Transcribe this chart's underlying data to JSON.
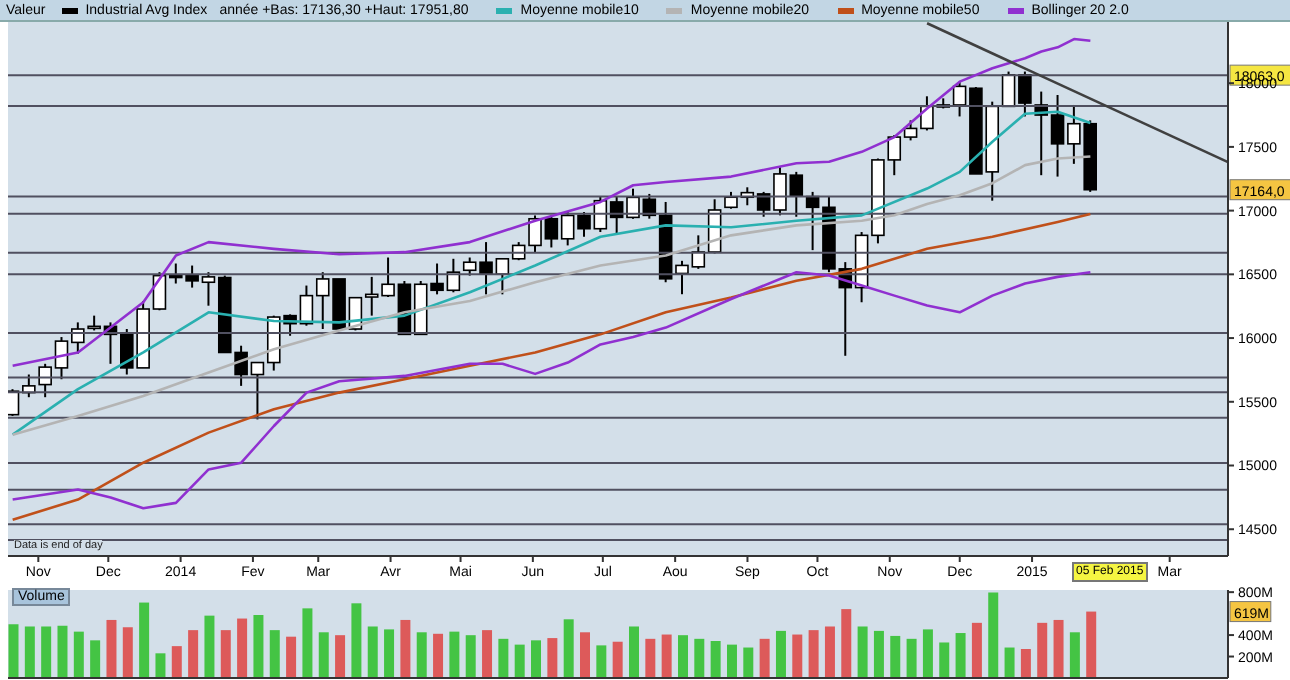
{
  "chart_data": [
    {
      "type": "candlestick",
      "legend_title": "Valeur",
      "legend": "top",
      "marker": "none",
      "x": [
        "2013-10-21",
        "2013-10-28",
        "2013-11-04",
        "2013-11-11",
        "2013-11-18",
        "2013-11-25",
        "2013-12-02",
        "2013-12-09",
        "2013-12-16",
        "2013-12-23",
        "2013-12-30",
        "2014-01-06",
        "2014-01-13",
        "2014-01-20",
        "2014-01-27",
        "2014-02-03",
        "2014-02-10",
        "2014-02-17",
        "2014-02-24",
        "2014-03-03",
        "2014-03-10",
        "2014-03-17",
        "2014-03-24",
        "2014-03-31",
        "2014-04-07",
        "2014-04-14",
        "2014-04-21",
        "2014-04-28",
        "2014-05-05",
        "2014-05-12",
        "2014-05-19",
        "2014-05-26",
        "2014-06-02",
        "2014-06-09",
        "2014-06-16",
        "2014-06-23",
        "2014-06-30",
        "2014-07-07",
        "2014-07-14",
        "2014-07-21",
        "2014-07-28",
        "2014-08-04",
        "2014-08-11",
        "2014-08-18",
        "2014-08-25",
        "2014-09-01",
        "2014-09-08",
        "2014-09-15",
        "2014-09-22",
        "2014-09-29",
        "2014-10-06",
        "2014-10-13",
        "2014-10-20",
        "2014-10-27",
        "2014-11-03",
        "2014-11-10",
        "2014-11-17",
        "2014-11-24",
        "2014-12-01",
        "2014-12-08",
        "2014-12-15",
        "2014-12-22",
        "2014-12-29",
        "2015-01-05",
        "2015-01-12",
        "2015-01-19",
        "2015-01-26"
      ],
      "xlim": [
        "2013-10-19",
        "2015-03-26"
      ],
      "xticks": [
        {
          "value": "2013-11-01",
          "label": "Nov"
        },
        {
          "value": "2013-12-01",
          "label": "Dec"
        },
        {
          "value": "2014-01-01",
          "label": "2014"
        },
        {
          "value": "2014-02-01",
          "label": "Fev"
        },
        {
          "value": "2014-03-01",
          "label": "Mar"
        },
        {
          "value": "2014-04-01",
          "label": "Avr"
        },
        {
          "value": "2014-05-01",
          "label": "Mai"
        },
        {
          "value": "2014-06-01",
          "label": "Jun"
        },
        {
          "value": "2014-07-01",
          "label": "Jul"
        },
        {
          "value": "2014-08-01",
          "label": "Aou"
        },
        {
          "value": "2014-09-01",
          "label": "Sep"
        },
        {
          "value": "2014-10-01",
          "label": "Oct"
        },
        {
          "value": "2014-11-01",
          "label": "Nov"
        },
        {
          "value": "2014-12-01",
          "label": "Dec"
        },
        {
          "value": "2015-01-01",
          "label": "2015"
        },
        {
          "value": "2015-03-01",
          "label": "Mar"
        }
      ],
      "ylim": [
        14290,
        18480
      ],
      "yticks": [
        14500,
        15000,
        15500,
        16000,
        16500,
        17000,
        17500,
        18000
      ],
      "ref_lines": [
        {
          "axis": "y",
          "value": 18063,
          "label": "18063,0",
          "color": "#505060"
        },
        {
          "axis": "y",
          "value": 17820,
          "color": "#505060"
        },
        {
          "axis": "y",
          "value": 17110,
          "color": "#505060"
        },
        {
          "axis": "y",
          "value": 16975,
          "color": "#505060"
        },
        {
          "axis": "y",
          "value": 16670,
          "color": "#505060"
        },
        {
          "axis": "y",
          "value": 16500,
          "color": "#505060"
        },
        {
          "axis": "y",
          "value": 16040,
          "color": "#505060"
        },
        {
          "axis": "y",
          "value": 15690,
          "color": "#505060"
        },
        {
          "axis": "y",
          "value": 15575,
          "color": "#505060"
        },
        {
          "axis": "y",
          "value": 15375,
          "color": "#505060"
        },
        {
          "axis": "y",
          "value": 15020,
          "color": "#505060"
        },
        {
          "axis": "y",
          "value": 14810,
          "color": "#505060"
        },
        {
          "axis": "y",
          "value": 14540,
          "color": "#505060"
        },
        {
          "axis": "y",
          "value": 14415,
          "color": "#505060"
        }
      ],
      "annotations": [
        "année +Bas: 17136,30 +Haut: 17951,80",
        "Data is end of day",
        "05 Feb 2015",
        {
          "text": "17164,0",
          "y": 17164
        }
      ],
      "series": [
        {
          "name": "Industrial Avg Index",
          "type": "candlestick",
          "color": "#000000",
          "ohlc": [
            [
              15399,
              15599,
              15389,
              15583
            ],
            [
              15572,
              15714,
              15536,
              15625
            ],
            [
              15635,
              15798,
              15536,
              15772
            ],
            [
              15766,
              16008,
              15677,
              15976
            ],
            [
              15966,
              16123,
              15877,
              16071
            ],
            [
              16076,
              16176,
              16060,
              16092
            ],
            [
              16092,
              16123,
              15798,
              16029
            ],
            [
              16029,
              16071,
              15714,
              15766
            ],
            [
              15766,
              16291,
              15766,
              16228
            ],
            [
              16228,
              16517,
              16218,
              16490
            ],
            [
              16496,
              16585,
              16428,
              16475
            ],
            [
              16490,
              16569,
              16396,
              16449
            ],
            [
              16438,
              16517,
              16254,
              16480
            ],
            [
              16475,
              16490,
              15887,
              15887
            ],
            [
              15887,
              15940,
              15625,
              15714
            ],
            [
              15714,
              15808,
              15362,
              15808
            ],
            [
              15808,
              16176,
              15745,
              16165
            ],
            [
              16176,
              16186,
              16018,
              16113
            ],
            [
              16113,
              16412,
              16097,
              16333
            ],
            [
              16333,
              16517,
              16071,
              16464
            ],
            [
              16464,
              16464,
              16071,
              16071
            ],
            [
              16071,
              16317,
              16060,
              16317
            ],
            [
              16322,
              16480,
              16176,
              16343
            ],
            [
              16333,
              16632,
              16322,
              16422
            ],
            [
              16422,
              16448,
              16029,
              16029
            ],
            [
              16029,
              16448,
              16029,
              16422
            ],
            [
              16428,
              16585,
              16343,
              16375
            ],
            [
              16375,
              16622,
              16359,
              16517
            ],
            [
              16532,
              16632,
              16490,
              16595
            ],
            [
              16595,
              16753,
              16343,
              16501
            ],
            [
              16501,
              16622,
              16343,
              16622
            ],
            [
              16622,
              16753,
              16611,
              16727
            ],
            [
              16727,
              16962,
              16674,
              16936
            ],
            [
              16936,
              16962,
              16711,
              16779
            ],
            [
              16779,
              16989,
              16727,
              16962
            ],
            [
              16962,
              16989,
              16795,
              16858
            ],
            [
              16858,
              17109,
              16832,
              17078
            ],
            [
              17068,
              17109,
              16816,
              16947
            ],
            [
              16947,
              17172,
              16936,
              17104
            ],
            [
              17089,
              17131,
              16937,
              16963
            ],
            [
              16963,
              17068,
              16438,
              16465
            ],
            [
              16507,
              16606,
              16344,
              16570
            ],
            [
              16559,
              16806,
              16543,
              16675
            ],
            [
              16675,
              17089,
              16664,
              17005
            ],
            [
              17026,
              17147,
              17015,
              17105
            ],
            [
              17105,
              17183,
              17042,
              17141
            ],
            [
              17131,
              17147,
              16952,
              17005
            ],
            [
              17005,
              17341,
              16963,
              17288
            ],
            [
              17278,
              17304,
              16952,
              17120
            ],
            [
              17110,
              17147,
              16690,
              17026
            ],
            [
              17026,
              17110,
              16517,
              16543
            ],
            [
              16543,
              16596,
              15861,
              16396
            ],
            [
              16396,
              16832,
              16281,
              16806
            ],
            [
              16806,
              17409,
              16743,
              17398
            ],
            [
              17398,
              17593,
              17278,
              17577
            ],
            [
              17577,
              17708,
              17551,
              17645
            ],
            [
              17645,
              17897,
              17629,
              17818
            ],
            [
              17818,
              17881,
              17802,
              17829
            ],
            [
              17829,
              18012,
              17739,
              17975
            ],
            [
              17960,
              17970,
              17288,
              17288
            ],
            [
              17304,
              17855,
              17078,
              17818
            ],
            [
              17818,
              18091,
              17818,
              18065
            ],
            [
              18065,
              18091,
              17739,
              17844
            ],
            [
              17829,
              17934,
              17278,
              17750
            ],
            [
              17750,
              17907,
              17267,
              17524
            ],
            [
              17524,
              17829,
              17367,
              17682
            ],
            [
              17682,
              17708,
              17147,
              17164
            ]
          ]
        },
        {
          "name": "Moyenne mobile10",
          "type": "line",
          "color": "#2ab0b0",
          "x": [
            "2013-10-21",
            "2013-11-18",
            "2013-12-16",
            "2014-01-13",
            "2014-02-10",
            "2014-03-10",
            "2014-04-07",
            "2014-05-05",
            "2014-06-02",
            "2014-06-30",
            "2014-07-28",
            "2014-08-25",
            "2014-09-22",
            "2014-10-20",
            "2014-11-17",
            "2014-12-01",
            "2014-12-15",
            "2014-12-29",
            "2015-01-12",
            "2015-01-26"
          ],
          "values": [
            15242,
            15599,
            15887,
            16202,
            16134,
            16123,
            16176,
            16359,
            16569,
            16795,
            16884,
            16869,
            16921,
            16963,
            17173,
            17304,
            17540,
            17760,
            17776,
            17687
          ]
        },
        {
          "name": "Moyenne mobile20",
          "type": "line",
          "color": "#b4b4b4",
          "x": [
            "2013-10-21",
            "2013-11-18",
            "2013-12-16",
            "2014-01-13",
            "2014-02-10",
            "2014-03-10",
            "2014-04-07",
            "2014-05-05",
            "2014-06-02",
            "2014-06-30",
            "2014-07-28",
            "2014-08-25",
            "2014-09-22",
            "2014-10-20",
            "2014-11-03",
            "2014-11-17",
            "2014-12-01",
            "2014-12-15",
            "2014-12-29",
            "2015-01-12",
            "2015-01-26"
          ],
          "values": [
            15242,
            15389,
            15546,
            15730,
            15913,
            16060,
            16202,
            16291,
            16438,
            16569,
            16648,
            16806,
            16884,
            16921,
            16963,
            17052,
            17120,
            17215,
            17357,
            17409,
            17425
          ]
        },
        {
          "name": "Moyenne mobile50",
          "type": "line",
          "color": "#c0501a",
          "x": [
            "2013-10-21",
            "2013-11-18",
            "2013-12-16",
            "2014-01-13",
            "2014-02-10",
            "2014-03-10",
            "2014-04-07",
            "2014-05-05",
            "2014-06-02",
            "2014-06-30",
            "2014-07-28",
            "2014-08-25",
            "2014-09-22",
            "2014-10-20",
            "2014-11-17",
            "2014-12-15",
            "2015-01-12",
            "2015-01-26"
          ],
          "values": [
            14575,
            14733,
            15022,
            15258,
            15441,
            15572,
            15677,
            15782,
            15887,
            16029,
            16202,
            16318,
            16449,
            16543,
            16701,
            16795,
            16911,
            16974
          ]
        },
        {
          "name": "Bollinger 20 2.0",
          "type": "line",
          "color": "#9030d0",
          "x": [
            "2013-10-21",
            "2013-11-18",
            "2013-12-16",
            "2013-12-30",
            "2014-01-13",
            "2014-02-10",
            "2014-03-10",
            "2014-04-07",
            "2014-05-05",
            "2014-06-02",
            "2014-06-30",
            "2014-07-14",
            "2014-07-28",
            "2014-08-25",
            "2014-09-22",
            "2014-10-06",
            "2014-10-20",
            "2014-11-03",
            "2014-11-17",
            "2014-12-01",
            "2014-12-15",
            "2014-12-29",
            "2015-01-05",
            "2015-01-12",
            "2015-01-19",
            "2015-01-26"
          ],
          "values": [
            15782,
            15887,
            16281,
            16648,
            16753,
            16700,
            16658,
            16674,
            16753,
            16921,
            17068,
            17199,
            17225,
            17267,
            17372,
            17383,
            17461,
            17577,
            17802,
            18012,
            18117,
            18196,
            18248,
            18281,
            18346,
            18333
          ]
        },
        {
          "type": "line",
          "color": "#9030d0",
          "x": [
            "2013-10-21",
            "2013-11-18",
            "2013-12-02",
            "2013-12-16",
            "2013-12-30",
            "2014-01-13",
            "2014-01-27",
            "2014-02-10",
            "2014-02-24",
            "2014-03-10",
            "2014-04-07",
            "2014-05-05",
            "2014-05-19",
            "2014-06-02",
            "2014-06-16",
            "2014-06-30",
            "2014-07-14",
            "2014-07-28",
            "2014-08-25",
            "2014-09-22",
            "2014-10-06",
            "2014-10-20",
            "2014-11-03",
            "2014-11-17",
            "2014-12-01",
            "2014-12-15",
            "2014-12-29",
            "2015-01-12",
            "2015-01-26"
          ],
          "values": [
            14733,
            14812,
            14749,
            14665,
            14707,
            14969,
            15022,
            15310,
            15572,
            15661,
            15703,
            15798,
            15798,
            15719,
            15808,
            15950,
            16008,
            16082,
            16307,
            16517,
            16491,
            16412,
            16333,
            16255,
            16202,
            16333,
            16428,
            16480,
            16517
          ]
        },
        {
          "type": "line",
          "color": "#404040",
          "x": [
            "2014-11-17",
            "2015-03-26"
          ],
          "values": [
            18470,
            17380
          ]
        }
      ]
    },
    {
      "type": "bar",
      "title": "Volume",
      "tick_labels": "y",
      "x": [
        "2013-10-21",
        "2013-10-28",
        "2013-11-04",
        "2013-11-11",
        "2013-11-18",
        "2013-11-25",
        "2013-12-02",
        "2013-12-09",
        "2013-12-16",
        "2013-12-23",
        "2013-12-30",
        "2014-01-06",
        "2014-01-13",
        "2014-01-20",
        "2014-01-27",
        "2014-02-03",
        "2014-02-10",
        "2014-02-17",
        "2014-02-24",
        "2014-03-03",
        "2014-03-10",
        "2014-03-17",
        "2014-03-24",
        "2014-03-31",
        "2014-04-07",
        "2014-04-14",
        "2014-04-21",
        "2014-04-28",
        "2014-05-05",
        "2014-05-12",
        "2014-05-19",
        "2014-05-26",
        "2014-06-02",
        "2014-06-09",
        "2014-06-16",
        "2014-06-23",
        "2014-06-30",
        "2014-07-07",
        "2014-07-14",
        "2014-07-21",
        "2014-07-28",
        "2014-08-04",
        "2014-08-11",
        "2014-08-18",
        "2014-08-25",
        "2014-09-01",
        "2014-09-08",
        "2014-09-15",
        "2014-09-22",
        "2014-09-29",
        "2014-10-06",
        "2014-10-13",
        "2014-10-20",
        "2014-10-27",
        "2014-11-03",
        "2014-11-10",
        "2014-11-17",
        "2014-11-24",
        "2014-12-01",
        "2014-12-08",
        "2014-12-15",
        "2014-12-22",
        "2014-12-29",
        "2015-01-05",
        "2015-01-12",
        "2015-01-19",
        "2015-01-26"
      ],
      "xlim": [
        "2013-10-19",
        "2015-03-26"
      ],
      "ylim": [
        0,
        820
      ],
      "yticks": [
        {
          "value": 200,
          "label": "200M"
        },
        {
          "value": 400,
          "label": "400M"
        },
        {
          "value": 800,
          "label": "800M"
        }
      ],
      "annotations": [
        {
          "text": "619M",
          "y": 619
        }
      ],
      "values": [
        500,
        480,
        480,
        486,
        432,
        351,
        541,
        473,
        703,
        230,
        297,
        446,
        581,
        446,
        554,
        588,
        446,
        385,
        649,
        426,
        399,
        696,
        480,
        453,
        541,
        426,
        412,
        432,
        399,
        446,
        365,
        311,
        351,
        372,
        547,
        426,
        304,
        338,
        480,
        365,
        405,
        399,
        365,
        345,
        311,
        284,
        365,
        439,
        405,
        446,
        480,
        642,
        480,
        439,
        392,
        365,
        453,
        331,
        419,
        514,
        797,
        284,
        270,
        514,
        541,
        426,
        619
      ],
      "colors": [
        "#44c444",
        "#44c444",
        "#44c444",
        "#44c444",
        "#44c444",
        "#44c444",
        "#dd5a5a",
        "#dd5a5a",
        "#44c444",
        "#44c444",
        "#dd5a5a",
        "#dd5a5a",
        "#44c444",
        "#dd5a5a",
        "#dd5a5a",
        "#44c444",
        "#44c444",
        "#dd5a5a",
        "#44c444",
        "#44c444",
        "#dd5a5a",
        "#44c444",
        "#44c444",
        "#44c444",
        "#dd5a5a",
        "#44c444",
        "#dd5a5a",
        "#44c444",
        "#44c444",
        "#dd5a5a",
        "#44c444",
        "#44c444",
        "#44c444",
        "#dd5a5a",
        "#44c444",
        "#dd5a5a",
        "#44c444",
        "#dd5a5a",
        "#44c444",
        "#dd5a5a",
        "#dd5a5a",
        "#44c444",
        "#44c444",
        "#44c444",
        "#44c444",
        "#44c444",
        "#dd5a5a",
        "#44c444",
        "#dd5a5a",
        "#dd5a5a",
        "#dd5a5a",
        "#dd5a5a",
        "#44c444",
        "#44c444",
        "#44c444",
        "#44c444",
        "#44c444",
        "#44c444",
        "#44c444",
        "#dd5a5a",
        "#44c444",
        "#44c444",
        "#dd5a5a",
        "#dd5a5a",
        "#dd5a5a",
        "#44c444",
        "#dd5a5a"
      ]
    }
  ]
}
